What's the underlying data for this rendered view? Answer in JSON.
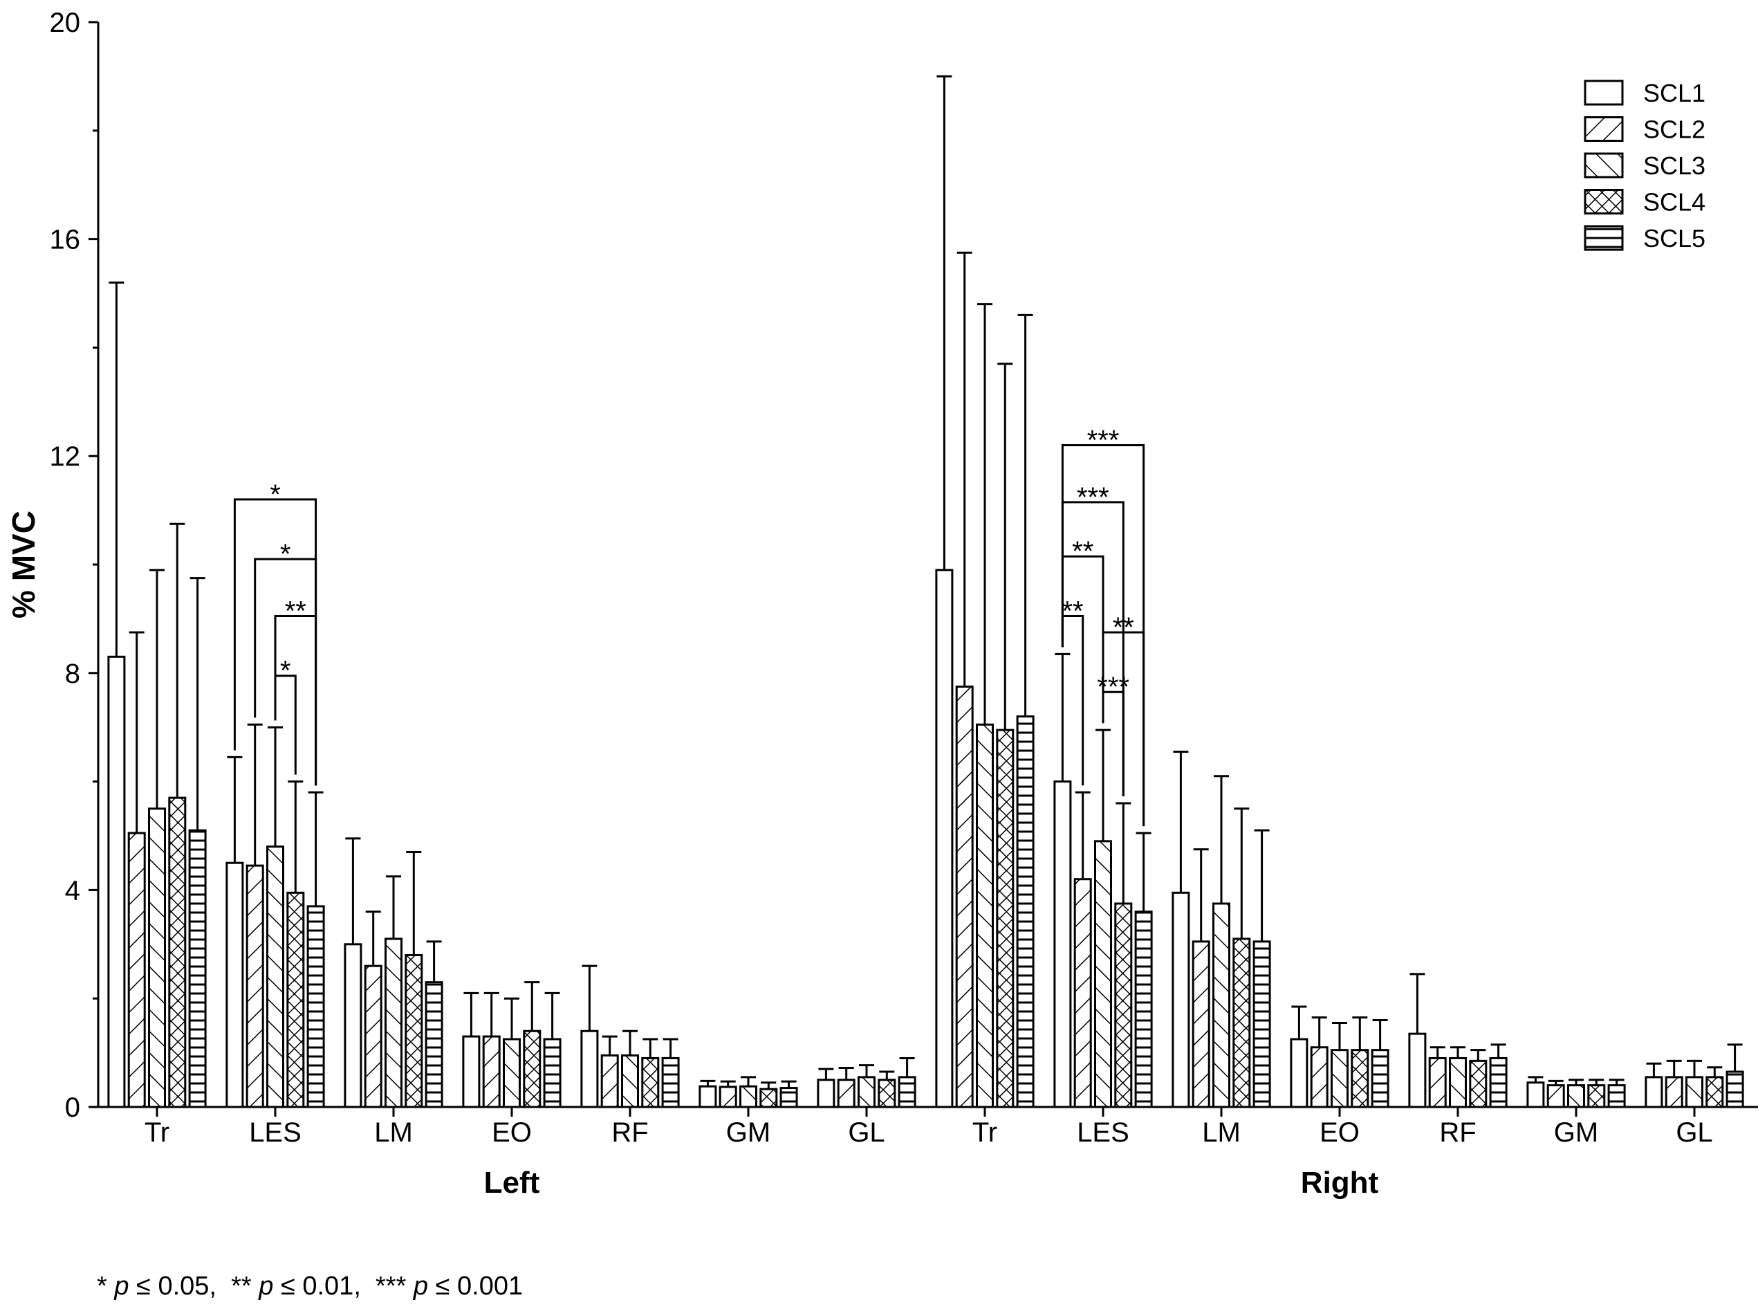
{
  "chart_data": {
    "type": "bar",
    "ylabel": "% MVC",
    "ylim": [
      0,
      20
    ],
    "yticks": [
      "0",
      "4",
      "8",
      "12",
      "16",
      "20"
    ],
    "grid": false,
    "legend_position": "top-right",
    "series_names": [
      "SCL1",
      "SCL2",
      "SCL3",
      "SCL4",
      "SCL5"
    ],
    "series_patterns": [
      "blank",
      "forward-hatch",
      "backward-hatch",
      "cross-hatch",
      "horizontal-lines"
    ],
    "groups": [
      {
        "label": "Left",
        "categories": [
          "Tr",
          "LES",
          "LM",
          "EO",
          "RF",
          "GM",
          "GL"
        ],
        "values": [
          [
            8.3,
            5.05,
            5.5,
            5.7,
            5.1
          ],
          [
            4.5,
            4.45,
            4.8,
            3.95,
            3.7
          ],
          [
            3.0,
            2.6,
            3.1,
            2.8,
            2.3
          ],
          [
            1.3,
            1.3,
            1.25,
            1.4,
            1.25
          ],
          [
            1.4,
            0.95,
            0.95,
            0.9,
            0.9
          ],
          [
            0.38,
            0.37,
            0.38,
            0.33,
            0.35
          ],
          [
            0.5,
            0.5,
            0.55,
            0.5,
            0.55
          ]
        ],
        "errors": [
          [
            6.9,
            3.7,
            4.4,
            5.05,
            4.65
          ],
          [
            1.95,
            2.6,
            2.2,
            2.05,
            2.1
          ],
          [
            1.95,
            1.0,
            1.15,
            1.9,
            0.75
          ],
          [
            0.8,
            0.8,
            0.75,
            0.9,
            0.85
          ],
          [
            1.2,
            0.35,
            0.45,
            0.35,
            0.35
          ],
          [
            0.1,
            0.1,
            0.17,
            0.12,
            0.12
          ],
          [
            0.2,
            0.22,
            0.22,
            0.15,
            0.35
          ]
        ],
        "significance": [
          {
            "from": 0,
            "to": 4,
            "label": "*",
            "level": 11.2
          },
          {
            "from": 1,
            "to": 4,
            "label": "*",
            "level": 10.1
          },
          {
            "from": 2,
            "to": 4,
            "label": "**",
            "level": 9.05
          },
          {
            "from": 2,
            "to": 3,
            "label": "*",
            "level": 7.95
          }
        ]
      },
      {
        "label": "Right",
        "categories": [
          "Tr",
          "LES",
          "LM",
          "EO",
          "RF",
          "GM",
          "GL"
        ],
        "values": [
          [
            9.9,
            7.75,
            7.05,
            6.95,
            7.2
          ],
          [
            6.0,
            4.2,
            4.9,
            3.75,
            3.6
          ],
          [
            3.95,
            3.05,
            3.75,
            3.1,
            3.05
          ],
          [
            1.25,
            1.1,
            1.05,
            1.05,
            1.05
          ],
          [
            1.35,
            0.9,
            0.9,
            0.85,
            0.9
          ],
          [
            0.45,
            0.4,
            0.4,
            0.4,
            0.4
          ],
          [
            0.55,
            0.55,
            0.55,
            0.55,
            0.65
          ]
        ],
        "errors": [
          [
            9.1,
            8.0,
            7.75,
            6.75,
            7.4
          ],
          [
            2.35,
            1.6,
            2.05,
            1.85,
            1.45
          ],
          [
            2.6,
            1.7,
            2.35,
            2.4,
            2.05
          ],
          [
            0.6,
            0.55,
            0.5,
            0.6,
            0.55
          ],
          [
            1.1,
            0.2,
            0.2,
            0.2,
            0.25
          ],
          [
            0.1,
            0.08,
            0.1,
            0.1,
            0.1
          ],
          [
            0.25,
            0.3,
            0.3,
            0.18,
            0.5
          ]
        ],
        "significance": [
          {
            "from": 0,
            "to": 4,
            "label": "***",
            "level": 12.2
          },
          {
            "from": 0,
            "to": 3,
            "label": "***",
            "level": 11.15
          },
          {
            "from": 0,
            "to": 2,
            "label": "**",
            "level": 10.15
          },
          {
            "from": 0,
            "to": 1,
            "label": "**",
            "level": 9.05
          },
          {
            "from": 2,
            "to": 4,
            "label": "**",
            "level": 8.75
          },
          {
            "from": 2,
            "to": 3,
            "label": "***",
            "level": 7.65
          }
        ]
      }
    ]
  },
  "footnote": {
    "s1": "* ",
    "p1": "p",
    "t1": " ≤ 0.05,  ** ",
    "p2": "p",
    "t2": " ≤ 0.01,  *** ",
    "p3": "p",
    "t3": " ≤ 0.001"
  }
}
